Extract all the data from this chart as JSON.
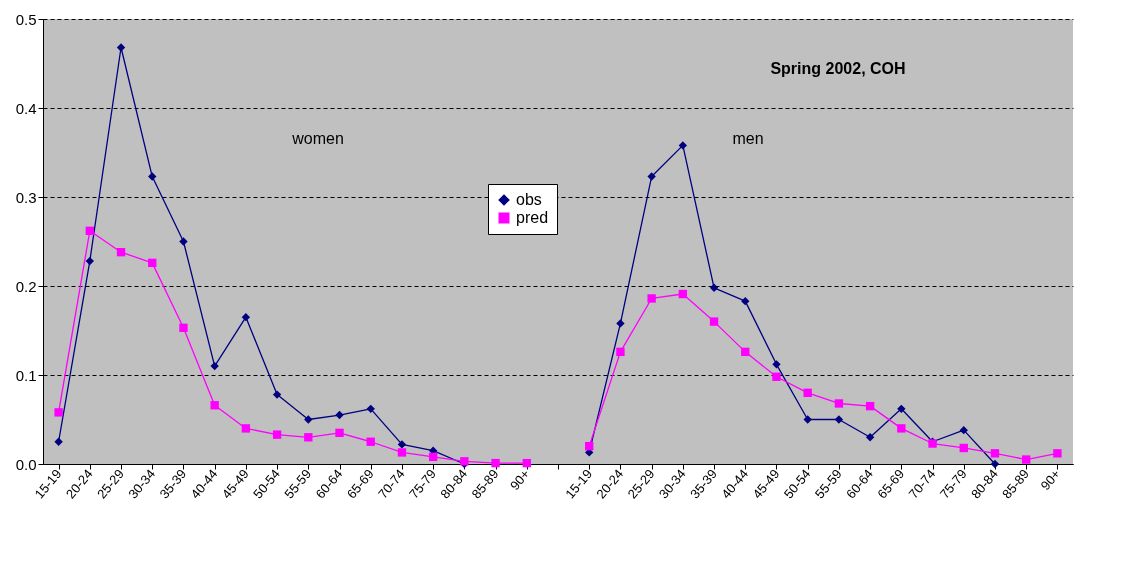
{
  "chart_data": {
    "type": "line",
    "title": "Spring 2002, COH",
    "categories": [
      "15-19",
      "20-24",
      "25-29",
      "30-34",
      "35-39",
      "40-44",
      "45-49",
      "50-54",
      "55-59",
      "60-64",
      "65-69",
      "70-74",
      "75-79",
      "80-84",
      "85-89",
      "90+",
      null,
      "15-19",
      "20-24",
      "25-29",
      "30-34",
      "35-39",
      "40-44",
      "45-49",
      "50-54",
      "55-59",
      "60-64",
      "65-69",
      "70-74",
      "75-79",
      "80-84",
      "85-89",
      "90+"
    ],
    "series": [
      {
        "name": "obs",
        "color": "#000080",
        "marker": "diamond",
        "values": [
          0.025,
          0.228,
          0.468,
          0.323,
          0.25,
          0.11,
          0.165,
          0.078,
          0.05,
          0.055,
          0.062,
          0.022,
          0.015,
          0.0,
          null,
          null,
          null,
          0.013,
          0.158,
          0.323,
          0.358,
          0.198,
          0.183,
          0.112,
          0.05,
          0.05,
          0.03,
          0.062,
          0.025,
          0.038,
          0.0,
          null,
          null
        ]
      },
      {
        "name": "pred",
        "color": "#ff00ff",
        "marker": "square",
        "values": [
          0.058,
          0.262,
          0.238,
          0.226,
          0.153,
          0.066,
          0.04,
          0.033,
          0.03,
          0.035,
          0.025,
          0.013,
          0.008,
          0.003,
          0.001,
          0.001,
          null,
          0.02,
          0.126,
          0.186,
          0.191,
          0.16,
          0.126,
          0.098,
          0.08,
          0.068,
          0.065,
          0.04,
          0.023,
          0.018,
          0.012,
          0.005,
          0.012
        ]
      }
    ],
    "annotations": [
      "women",
      "men"
    ],
    "ylim": [
      0,
      0.5
    ],
    "yticks": [
      {
        "value": 0,
        "label": "0.0"
      },
      0.1,
      0.2,
      0.3,
      0.4,
      0.5
    ],
    "grid": "y",
    "legend": "top"
  }
}
